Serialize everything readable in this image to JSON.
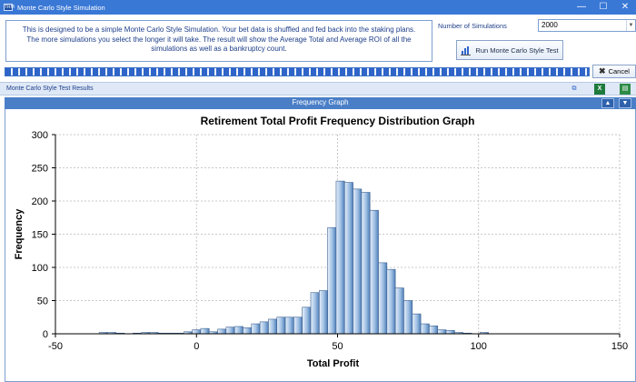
{
  "window": {
    "title": "Monte Carlo Style Simulation",
    "icon": "app-icon",
    "minimize": "—",
    "maximize": "☐",
    "close": "✕"
  },
  "description": "This is designed to be a simple Monte Carlo Style Simulation. Your bet data is shuffled and fed back into the staking plans. The more simulations you select the longer it will take.  The result will show the Average Total and Average ROI of all the simulations as well as a bankruptcy count.",
  "simulations": {
    "label": "Number of Simulations",
    "value": "2000"
  },
  "run_button": {
    "label": "Run Monte Carlo Style Test",
    "icon": "bar-chart-icon"
  },
  "cancel_button": {
    "label": "Cancel",
    "icon": "close-icon"
  },
  "progress": {
    "fraction": 1.0
  },
  "results": {
    "title": "Monte Carlo Style Test Results",
    "icons": [
      "copy-icon",
      "excel-icon",
      "export-icon"
    ]
  },
  "graph_panel": {
    "title": "Frequency Graph",
    "collapse": "▲",
    "expand": "▼"
  },
  "chart_data": {
    "type": "bar",
    "title": "Retirement Total Profit Frequency Distribution Graph",
    "xlabel": "Total Profit",
    "ylabel": "Frequency",
    "xlim": [
      -50,
      150
    ],
    "ylim": [
      0,
      300
    ],
    "xticks": [
      -50,
      0,
      50,
      100,
      150
    ],
    "yticks": [
      0,
      50,
      100,
      150,
      200,
      250,
      300
    ],
    "bin_width": 3,
    "bins": [
      {
        "x": -33,
        "y": 2
      },
      {
        "x": -30,
        "y": 2
      },
      {
        "x": -27,
        "y": 1
      },
      {
        "x": -21,
        "y": 1
      },
      {
        "x": -18,
        "y": 2
      },
      {
        "x": -15,
        "y": 2
      },
      {
        "x": -12,
        "y": 1
      },
      {
        "x": -9,
        "y": 1
      },
      {
        "x": -6,
        "y": 1
      },
      {
        "x": -3,
        "y": 3
      },
      {
        "x": 0,
        "y": 6
      },
      {
        "x": 3,
        "y": 8
      },
      {
        "x": 6,
        "y": 3
      },
      {
        "x": 9,
        "y": 7
      },
      {
        "x": 12,
        "y": 10
      },
      {
        "x": 15,
        "y": 11
      },
      {
        "x": 18,
        "y": 9
      },
      {
        "x": 21,
        "y": 15
      },
      {
        "x": 24,
        "y": 18
      },
      {
        "x": 27,
        "y": 22
      },
      {
        "x": 30,
        "y": 25
      },
      {
        "x": 33,
        "y": 25
      },
      {
        "x": 36,
        "y": 25
      },
      {
        "x": 39,
        "y": 40
      },
      {
        "x": 42,
        "y": 62
      },
      {
        "x": 45,
        "y": 65
      },
      {
        "x": 48,
        "y": 160
      },
      {
        "x": 51,
        "y": 230
      },
      {
        "x": 54,
        "y": 228
      },
      {
        "x": 57,
        "y": 218
      },
      {
        "x": 60,
        "y": 213
      },
      {
        "x": 63,
        "y": 186
      },
      {
        "x": 66,
        "y": 107
      },
      {
        "x": 69,
        "y": 97
      },
      {
        "x": 72,
        "y": 69
      },
      {
        "x": 75,
        "y": 50
      },
      {
        "x": 78,
        "y": 30
      },
      {
        "x": 81,
        "y": 15
      },
      {
        "x": 84,
        "y": 12
      },
      {
        "x": 87,
        "y": 6
      },
      {
        "x": 90,
        "y": 5
      },
      {
        "x": 93,
        "y": 2
      },
      {
        "x": 96,
        "y": 1
      },
      {
        "x": 102,
        "y": 2
      }
    ]
  }
}
